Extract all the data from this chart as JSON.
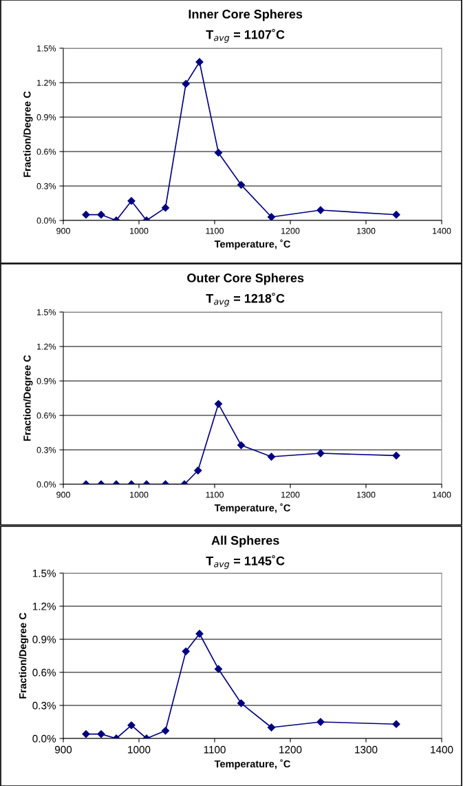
{
  "chart_data": [
    {
      "type": "line",
      "title": "Inner Core Spheres",
      "subtitle": "T$_{avg}$ = 1107˚C",
      "xlabel": "Temperature, ˚C",
      "ylabel": "Fraction/Degree C",
      "x": [
        930,
        950,
        970,
        990,
        1010,
        1035,
        1062,
        1080,
        1105,
        1135,
        1175,
        1240,
        1340
      ],
      "series": [
        {
          "color": "#000080",
          "values": [
            0.05,
            0.05,
            0,
            0.17,
            0,
            0.11,
            1.19,
            1.38,
            0.59,
            0.31,
            0.03,
            0.09,
            0.05
          ]
        }
      ],
      "xlim": [
        900,
        1400
      ],
      "xticks": [
        900,
        1000,
        1100,
        1200,
        1300,
        1400
      ],
      "ylim": [
        0,
        1.5
      ],
      "yticks": [
        {
          "value": 0,
          "label": "0.0%"
        },
        {
          "value": 0.3,
          "label": "0.3%"
        },
        {
          "value": 0.6,
          "label": "0.6%"
        },
        {
          "value": 0.9,
          "label": "0.9%"
        },
        {
          "value": 1.2,
          "label": "1.2%"
        },
        {
          "value": 1.5,
          "label": "1.5%"
        }
      ],
      "grid": "y",
      "marker": "diamond",
      "line_style": "solid"
    },
    {
      "type": "line",
      "title": "Outer Core Spheres",
      "subtitle": "T$_{avg}$ = 1218˚C",
      "xlabel": "Temperature, ˚C",
      "ylabel": "Fraction/Degree C",
      "x": [
        930,
        950,
        970,
        990,
        1010,
        1035,
        1060,
        1078,
        1105,
        1135,
        1175,
        1240,
        1340
      ],
      "series": [
        {
          "color": "#000080",
          "values": [
            0,
            0,
            0,
            0,
            0,
            0,
            0,
            0.12,
            0.7,
            0.34,
            0.24,
            0.27,
            0.25
          ]
        }
      ],
      "xlim": [
        900,
        1400
      ],
      "xticks": [
        900,
        1000,
        1100,
        1200,
        1300,
        1400
      ],
      "ylim": [
        0,
        1.5
      ],
      "yticks": [
        {
          "value": 0,
          "label": "0.0%"
        },
        {
          "value": 0.3,
          "label": "0.3%"
        },
        {
          "value": 0.6,
          "label": "0.6%"
        },
        {
          "value": 0.9,
          "label": "0.9%"
        },
        {
          "value": 1.2,
          "label": "1.2%"
        },
        {
          "value": 1.5,
          "label": "1.5%"
        }
      ],
      "grid": "y",
      "marker": "diamond",
      "line_style": "solid"
    },
    {
      "type": "line",
      "title": "All Spheres",
      "subtitle": "T$_{avg}$ = 1145˚C",
      "xlabel": "Temperature, ˚C",
      "ylabel": "Fraction/Degree C",
      "x": [
        930,
        950,
        970,
        990,
        1010,
        1035,
        1062,
        1080,
        1105,
        1135,
        1175,
        1240,
        1340
      ],
      "series": [
        {
          "color": "#000080",
          "values": [
            0.04,
            0.04,
            0,
            0.12,
            0,
            0.07,
            0.79,
            0.95,
            0.63,
            0.32,
            0.1,
            0.15,
            0.13
          ]
        }
      ],
      "xlim": [
        900,
        1400
      ],
      "xticks": [
        900,
        1000,
        1100,
        1200,
        1300,
        1400
      ],
      "ylim": [
        0,
        1.5
      ],
      "yticks": [
        {
          "value": 0,
          "label": "0.0%"
        },
        {
          "value": 0.3,
          "label": "0.3%"
        },
        {
          "value": 0.6,
          "label": "0.6%"
        },
        {
          "value": 0.9,
          "label": "0.9%"
        },
        {
          "value": 1.2,
          "label": "1.2%"
        },
        {
          "value": 1.5,
          "label": "1.5%"
        }
      ],
      "grid": "y",
      "marker": "diamond",
      "line_style": "solid"
    }
  ]
}
